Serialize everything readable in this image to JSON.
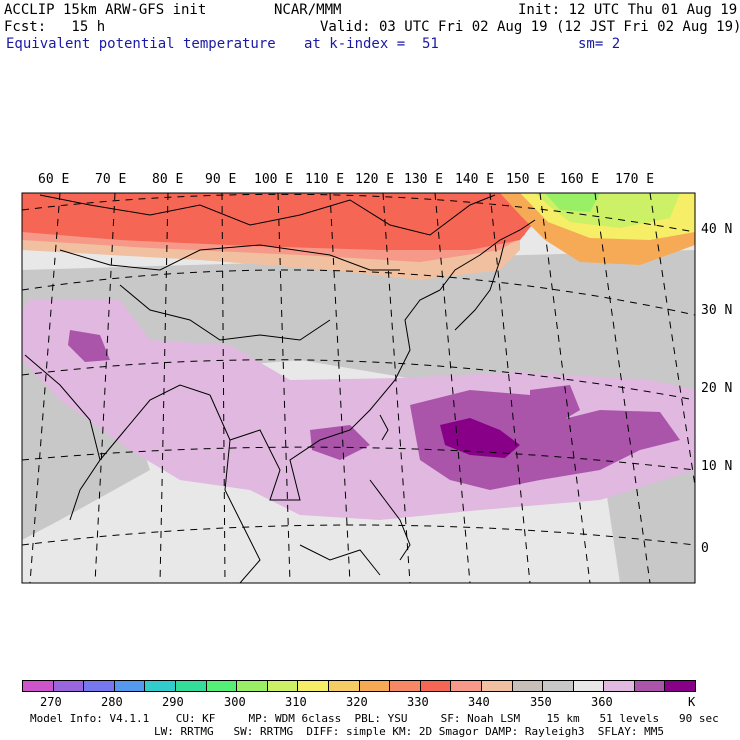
{
  "header": {
    "model": "ACCLIP 15km ARW-GFS init",
    "source": "NCAR/MMM",
    "init": "Init: 12 UTC Thu 01 Aug 19",
    "fcst": "Fcst:   15 h",
    "valid": "Valid: 03 UTC Fri 02 Aug 19 (12 JST Fri 02 Aug 19)",
    "field": "Equivalent potential temperature",
    "level": "at k-index =  51",
    "smooth": "sm= 2"
  },
  "map": {
    "lon_labels": [
      "60 E",
      "70 E",
      "80 E",
      "90 E",
      "100 E",
      "110 E",
      "120 E",
      "130 E",
      "140 E",
      "150 E",
      "160 E",
      "170 E"
    ],
    "lat_labels": [
      "40 N",
      "30 N",
      "20 N",
      "10 N",
      "0"
    ]
  },
  "colorbar": {
    "colors": [
      "#cc55cc",
      "#9966dd",
      "#7777ee",
      "#5599ee",
      "#33cccc",
      "#33dd99",
      "#55ee77",
      "#99f066",
      "#ccf066",
      "#f5ee66",
      "#f6cc66",
      "#f6aa55",
      "#f68866",
      "#f66655",
      "#f69988",
      "#f0c0a0",
      "#c8c0b8",
      "#c8c8c8",
      "#e8e8e8",
      "#e0b8e0",
      "#aa55aa",
      "#880088"
    ],
    "labels": [
      "270",
      "280",
      "290",
      "300",
      "310",
      "320",
      "330",
      "340",
      "350",
      "360",
      "K"
    ]
  },
  "footer": {
    "line1": "Model Info: V4.1.1    CU: KF     MP: WDM 6class  PBL: YSU     SF: Noah LSM    15 km   51 levels   90 sec",
    "line2": "LW: RRTMG   SW: RRTMG  DIFF: simple KM: 2D Smagor DAMP: Rayleigh3  SFLAY: MM5"
  }
}
